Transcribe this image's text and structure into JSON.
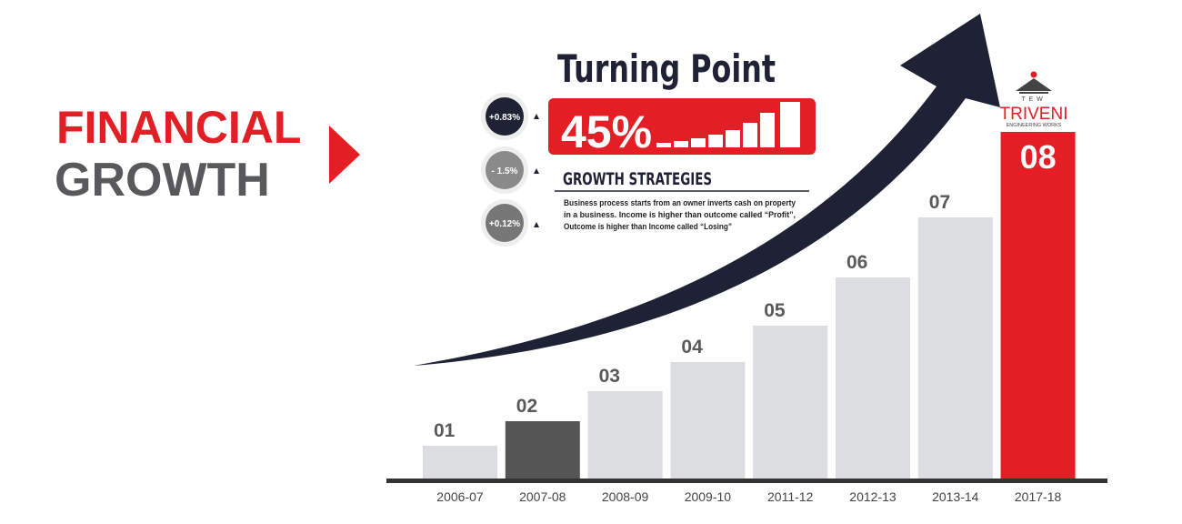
{
  "header": {
    "line1": "FINANCIAL",
    "line2": "GROWTH"
  },
  "panel": {
    "title": "Turning Point",
    "headline": "45%",
    "indicators": [
      "+0.83%",
      "- 1.5%",
      "+0.12%"
    ],
    "subtitle": "GROWTH STRATEGIES",
    "body": [
      "Business process starts from an owner inverts cash on property",
      "in a business. Income is higher than outcome called “Profit”,",
      "Outcome is higher than Income called “Losing”"
    ]
  },
  "logo": {
    "mark": "TEW",
    "name": "TRIVENI",
    "tagline": "ENGINEERING WORKS"
  },
  "chart_data": {
    "type": "bar",
    "categories": [
      "2006-07",
      "2007-08",
      "2008-09",
      "2009-10",
      "2011-12",
      "2012-13",
      "2013-14",
      "2017-18"
    ],
    "bar_labels": [
      "01",
      "02",
      "03",
      "04",
      "05",
      "06",
      "07",
      "08"
    ],
    "values": [
      37,
      64,
      97,
      129,
      169,
      222,
      288,
      382
    ],
    "colors": [
      "#dcdde1",
      "#555555",
      "#dcdde1",
      "#dcdde1",
      "#dcdde1",
      "#dcdde1",
      "#dcdde1",
      "#e31e24"
    ]
  }
}
